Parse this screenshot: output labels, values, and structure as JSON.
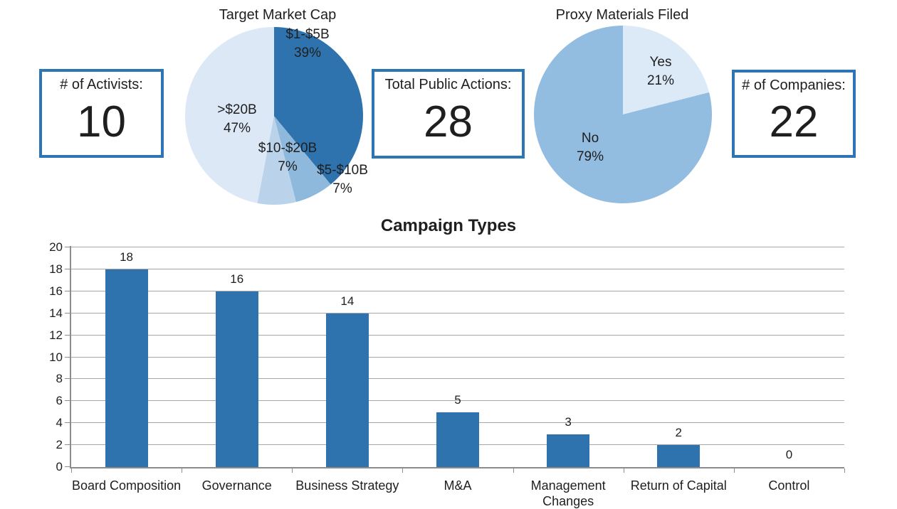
{
  "stat_boxes": [
    {
      "label": "# of Activists:",
      "value": "10"
    },
    {
      "label": "Total Public Actions:",
      "value": "28"
    },
    {
      "label": "# of Companies:",
      "value": "22"
    }
  ],
  "chart_data": [
    {
      "type": "pie",
      "title": "Target Market Cap",
      "labels": [
        "$1-$5B",
        "$5-$10B",
        "$10-$20B",
        ">$20B"
      ],
      "values": [
        39,
        7,
        7,
        47
      ],
      "pct_labels": [
        "39%",
        "7%",
        "7%",
        "47%"
      ],
      "colors": [
        "#2E73AE",
        "#8FB9DC",
        "#BAD3EA",
        "#DCE8F5"
      ],
      "start_angle_deg": 0,
      "direction": "clockwise",
      "legend": "none"
    },
    {
      "type": "pie",
      "title": "Proxy Materials Filed",
      "labels": [
        "Yes",
        "No"
      ],
      "values": [
        21,
        79
      ],
      "pct_labels": [
        "21%",
        "79%"
      ],
      "colors": [
        "#DCE9F7",
        "#92BCE0"
      ],
      "start_angle_deg": 0,
      "direction": "clockwise",
      "legend": "none"
    },
    {
      "type": "bar",
      "title": "Campaign Types",
      "categories": [
        "Board Composition",
        "Governance",
        "Business Strategy",
        "M&A",
        "Management Changes",
        "Return of Capital",
        "Control"
      ],
      "values": [
        18,
        16,
        14,
        5,
        3,
        2,
        0
      ],
      "yticks": [
        0,
        2,
        4,
        6,
        8,
        10,
        12,
        14,
        16,
        18,
        20
      ],
      "ylim": [
        0,
        20
      ],
      "grid": true,
      "bar_color": "#2E73AE",
      "xlabel": "",
      "ylabel": ""
    }
  ],
  "colors": {
    "box_border": "#2E75B6",
    "gridline": "#A6A6A6",
    "axis": "#8C8C8C",
    "text": "#1f1f1f",
    "background": "#ffffff"
  }
}
